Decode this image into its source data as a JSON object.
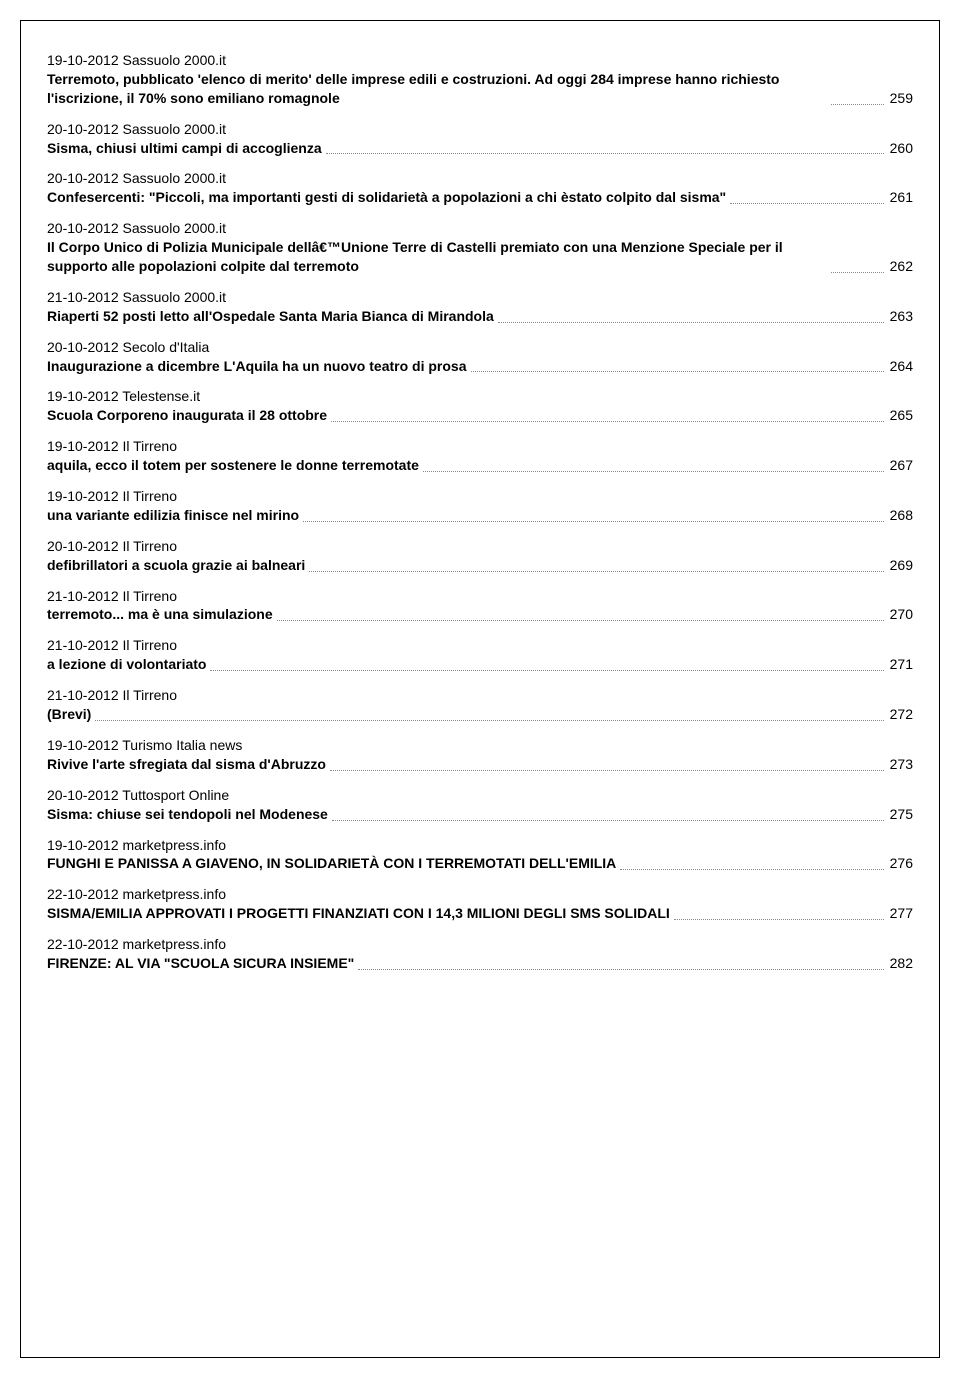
{
  "entries": [
    {
      "date": "19-10-2012",
      "source": "Sassuolo 2000.it",
      "title": "Terremoto, pubblicato 'elenco di merito' delle imprese edili e costruzioni. Ad oggi 284 imprese hanno richiesto l'iscrizione, il 70% sono emiliano romagnole",
      "page": "259"
    },
    {
      "date": "20-10-2012",
      "source": "Sassuolo 2000.it",
      "title": "Sisma, chiusi ultimi campi di accoglienza",
      "page": "260"
    },
    {
      "date": "20-10-2012",
      "source": "Sassuolo 2000.it",
      "title": "Confesercenti: \"Piccoli, ma importanti gesti di solidarietà a popolazioni a chi èstato colpito dal sisma\"",
      "page": "261"
    },
    {
      "date": "20-10-2012",
      "source": "Sassuolo 2000.it",
      "title": "Il Corpo Unico di Polizia Municipale dellâ€™Unione Terre di Castelli premiato con una Menzione Speciale per il supporto alle popolazioni colpite dal terremoto",
      "page": "262"
    },
    {
      "date": "21-10-2012",
      "source": "Sassuolo 2000.it",
      "title": "Riaperti 52 posti letto all'Ospedale Santa Maria Bianca di Mirandola",
      "page": "263"
    },
    {
      "date": "20-10-2012",
      "source": "Secolo d'Italia",
      "title": "Inaugurazione a dicembre L'Aquila ha un nuovo teatro di prosa",
      "page": "264"
    },
    {
      "date": "19-10-2012",
      "source": "Telestense.it",
      "title": "Scuola Corporeno inaugurata il 28 ottobre",
      "page": "265"
    },
    {
      "date": "19-10-2012",
      "source": "Il Tirreno",
      "title": "aquila, ecco il totem per sostenere le donne terremotate",
      "page": "267"
    },
    {
      "date": "19-10-2012",
      "source": "Il Tirreno",
      "title": "una variante edilizia finisce nel mirino",
      "page": "268"
    },
    {
      "date": "20-10-2012",
      "source": "Il Tirreno",
      "title": "defibrillatori a scuola grazie ai balneari",
      "page": "269"
    },
    {
      "date": "21-10-2012",
      "source": "Il Tirreno",
      "title": "terremoto... ma è una simulazione",
      "page": "270"
    },
    {
      "date": "21-10-2012",
      "source": "Il Tirreno",
      "title": "a lezione di volontariato",
      "page": "271"
    },
    {
      "date": "21-10-2012",
      "source": "Il Tirreno",
      "title": "(Brevi)",
      "page": "272"
    },
    {
      "date": "19-10-2012",
      "source": "Turismo Italia news",
      "title": "Rivive l'arte sfregiata dal sisma d'Abruzzo",
      "page": "273"
    },
    {
      "date": "20-10-2012",
      "source": "Tuttosport Online",
      "title": "Sisma: chiuse sei tendopoli nel Modenese",
      "page": "275"
    },
    {
      "date": "19-10-2012",
      "source": "marketpress.info",
      "title": "FUNGHI E PANISSA A GIAVENO, IN SOLIDARIETÀ CON I TERREMOTATI DELL'EMILIA",
      "page": "276"
    },
    {
      "date": "22-10-2012",
      "source": "marketpress.info",
      "title": "SISMA/EMILIA APPROVATI I PROGETTI FINANZIATI CON I 14,3 MILIONI DEGLI SMS SOLIDALI",
      "page": "277"
    },
    {
      "date": "22-10-2012",
      "source": "marketpress.info",
      "title": "FIRENZE: AL VIA \"SCUOLA SICURA INSIEME\"",
      "page": "282"
    }
  ]
}
